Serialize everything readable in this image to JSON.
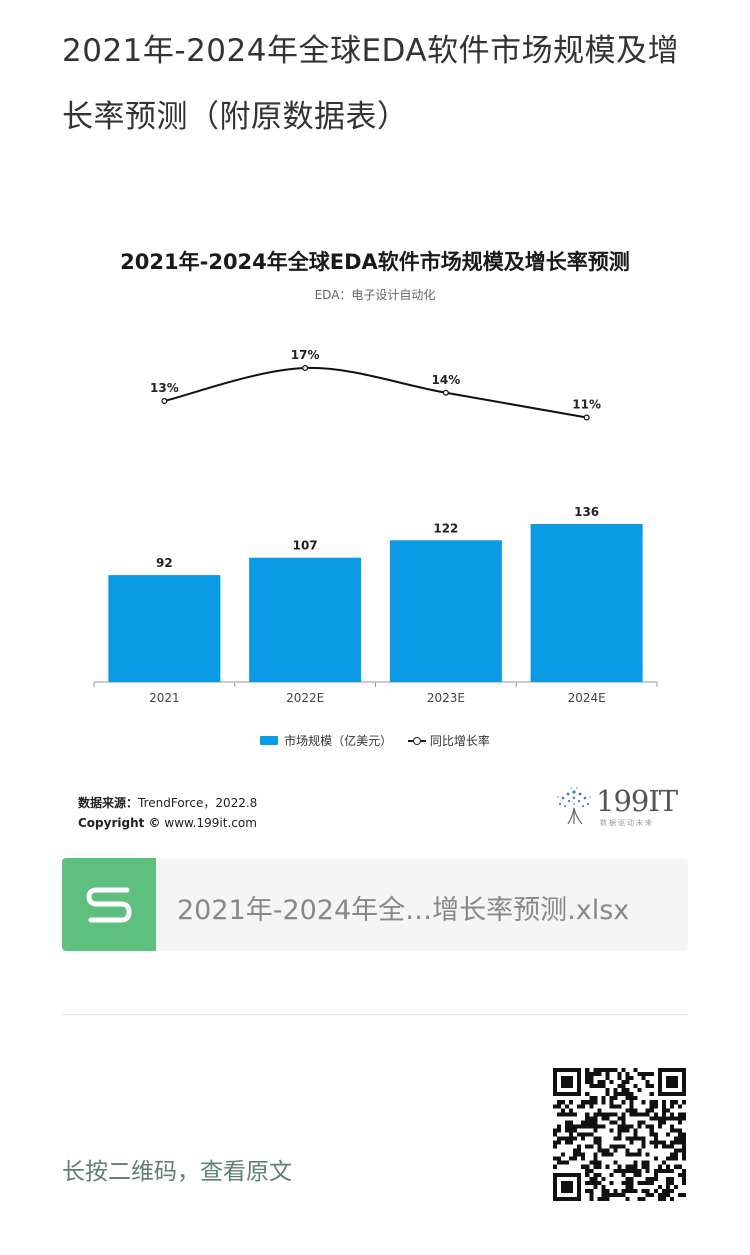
{
  "article": {
    "title": "2021年-2024年全球EDA软件市场规模及增长率预测（附原数据表）"
  },
  "chart": {
    "title": "2021年-2024年全球EDA软件市场规模及增长率预测",
    "subtitle": "EDA：电子设计自动化",
    "legend_bar": "市场规模（亿美元）",
    "legend_line": "同比增长率",
    "source_label": "数据来源：",
    "source_value": "TrendForce，2022.8",
    "copyright_label": "Copyright ©",
    "copyright_value": "www.199it.com",
    "brand": "199IT",
    "brand_tagline": "数据驱动未来",
    "colors": {
      "bar": "#0a9be4",
      "line": "#111111"
    }
  },
  "chart_data": {
    "type": "bar",
    "categories": [
      "2021",
      "2022E",
      "2023E",
      "2024E"
    ],
    "series": [
      {
        "name": "市场规模（亿美元）",
        "type": "bar",
        "values": [
          92,
          107,
          122,
          136
        ],
        "labels": [
          "92",
          "107",
          "122",
          "136"
        ]
      },
      {
        "name": "同比增长率",
        "type": "line",
        "values": [
          13,
          17,
          14,
          11
        ],
        "labels": [
          "13%",
          "17%",
          "14%",
          "11%"
        ]
      }
    ],
    "title": "2021年-2024年全球EDA软件市场规模及增长率预测",
    "subtitle": "EDA：电子设计自动化",
    "legend": "bottom-center",
    "grid": false
  },
  "attachment": {
    "file_name": "2021年-2024年全…增长率预测.xlsx",
    "icon": "spreadsheet-s-icon"
  },
  "footer": {
    "qr_prompt": "长按二维码，查看原文",
    "qr_icon": "qr-code-icon"
  }
}
